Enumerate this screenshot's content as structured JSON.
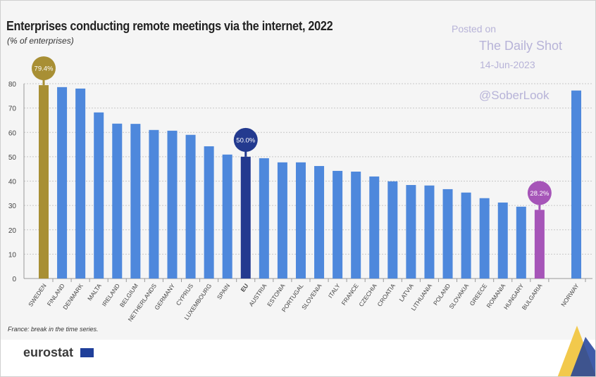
{
  "title": "Enterprises conducting remote meetings via the internet, 2022",
  "subtitle": "(% of enterprises)",
  "watermark": {
    "posted": "Posted on",
    "site": "The Daily Shot",
    "date": "14-Jun-2023",
    "handle": "@SoberLook"
  },
  "note": "France: break in the time series.",
  "logo": "eurostat",
  "colors": {
    "bar": "#4e88dc",
    "highest": "#a88f34",
    "eu": "#233a8f",
    "lowest": "#a655b8"
  },
  "chart_data": {
    "type": "bar",
    "title": "Enterprises conducting remote meetings via the internet, 2022",
    "ylabel": "(% of enterprises)",
    "ylim": [
      0,
      80
    ],
    "yticks": [
      0,
      10,
      20,
      30,
      40,
      50,
      60,
      70,
      80
    ],
    "grid": true,
    "categories": [
      "SWEDEN",
      "FINLAND",
      "DENMARK",
      "MALTA",
      "IRELAND",
      "BELGIUM",
      "NETHERLANDS",
      "GERMANY",
      "CYPRUS",
      "LUXEMBOURG",
      "SPAIN",
      "EU",
      "AUSTRIA",
      "ESTONIA",
      "PORTUGAL",
      "SLOVENIA",
      "ITALY",
      "FRANCE",
      "CZECHIA",
      "CROATIA",
      "LATVIA",
      "LITHUANIA",
      "POLAND",
      "SLOVAKIA",
      "GREECE",
      "ROMANIA",
      "HUNGARY",
      "BULGARIA",
      "NORWAY"
    ],
    "values": [
      79.4,
      78.6,
      78.0,
      68.2,
      63.6,
      63.5,
      61.0,
      60.7,
      59.0,
      54.3,
      50.9,
      50.0,
      49.4,
      47.7,
      47.7,
      46.2,
      44.2,
      43.9,
      41.9,
      39.9,
      38.4,
      38.2,
      36.7,
      35.3,
      33.0,
      31.2,
      29.5,
      28.2,
      77.2
    ],
    "annotations": [
      {
        "category": "SWEDEN",
        "label": "79.4%"
      },
      {
        "category": "EU",
        "label": "50.0%"
      },
      {
        "category": "BULGARIA",
        "label": "28.2%"
      }
    ]
  }
}
